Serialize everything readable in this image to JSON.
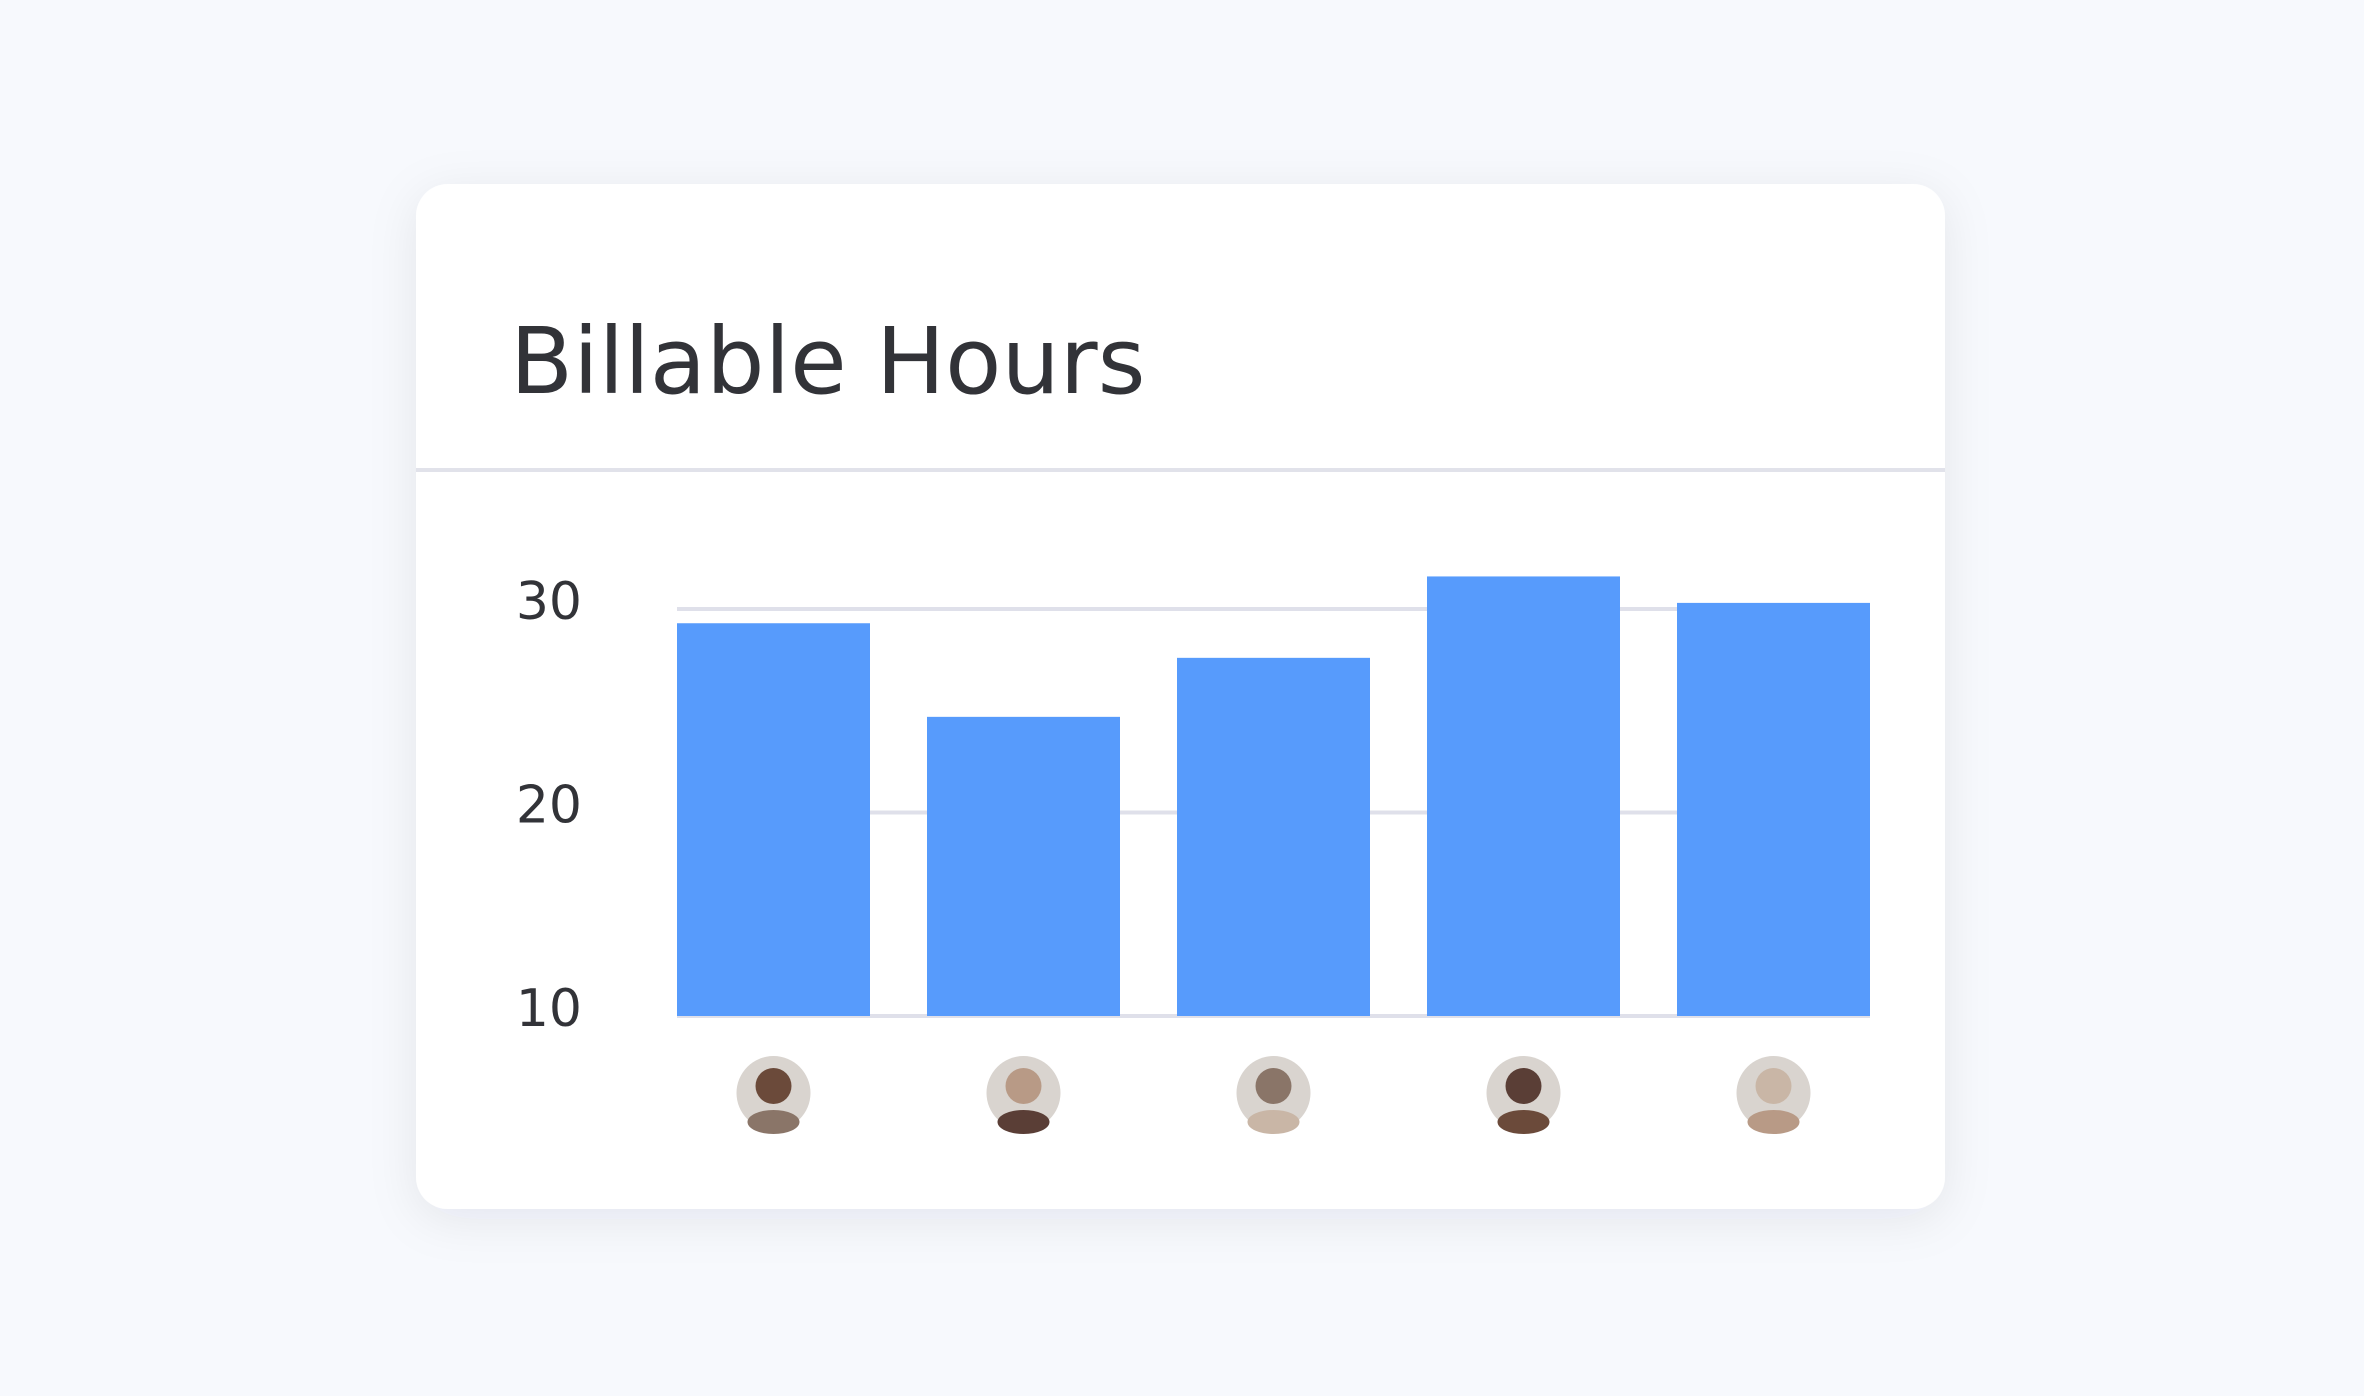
{
  "chart_data": {
    "type": "bar",
    "title": "Billable Hours",
    "categories": [
      null,
      null,
      null,
      null,
      null
    ],
    "values": [
      29.3,
      24.7,
      27.6,
      31.6,
      30.3
    ],
    "color": "#579bfc",
    "ylim": [
      10,
      32
    ],
    "yticks": [
      10,
      20,
      30
    ],
    "grid": true
  }
}
